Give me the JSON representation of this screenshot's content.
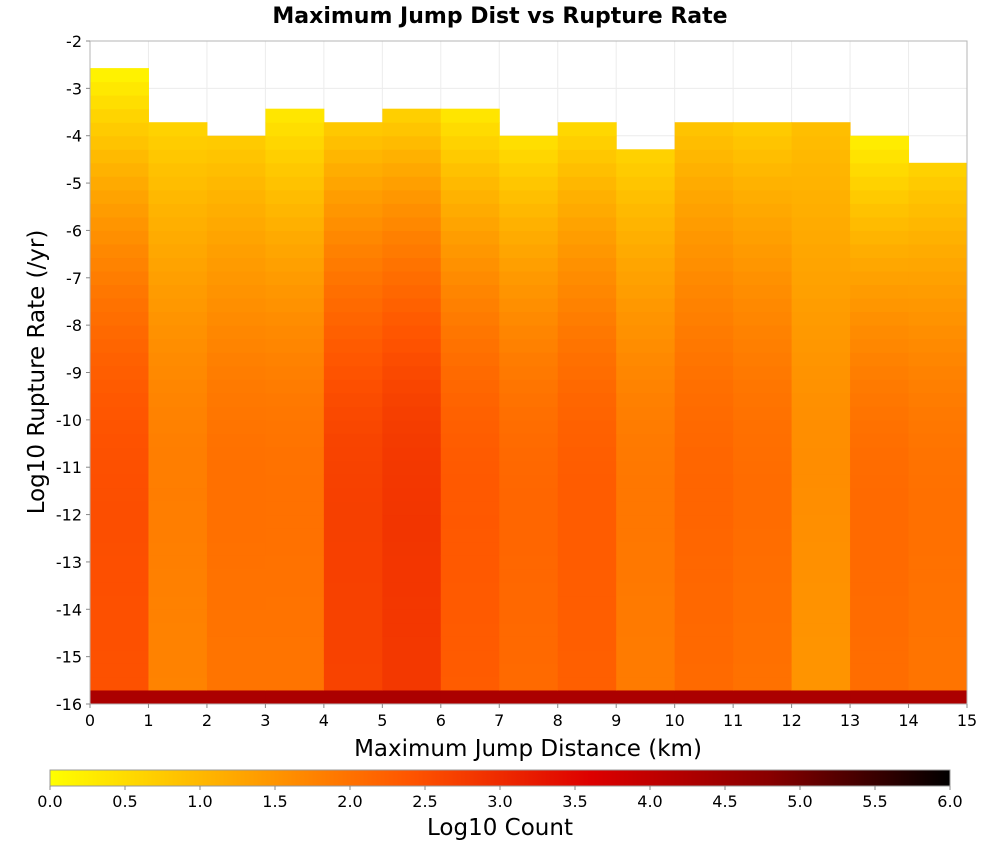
{
  "chart_data": {
    "type": "heatmap",
    "title": "Maximum Jump Dist vs Rupture Rate",
    "xlabel": "Maximum Jump Distance (km)",
    "ylabel": "Log10 Rupture Rate (/yr)",
    "colorbar_label": "Log10 Count",
    "xlim": [
      0,
      15
    ],
    "ylim": [
      -16,
      -2
    ],
    "x_ticks": [
      "0",
      "1",
      "2",
      "3",
      "4",
      "5",
      "6",
      "7",
      "8",
      "9",
      "10",
      "11",
      "12",
      "13",
      "14",
      "15"
    ],
    "y_ticks": [
      "-2",
      "-3",
      "-4",
      "-5",
      "-6",
      "-7",
      "-8",
      "-9",
      "-10",
      "-11",
      "-12",
      "-13",
      "-14",
      "-15",
      "-16"
    ],
    "colorbar_range": [
      0,
      6
    ],
    "colorbar_ticks": [
      "0.0",
      "0.5",
      "1.0",
      "1.5",
      "2.0",
      "2.5",
      "3.0",
      "3.5",
      "4.0",
      "4.5",
      "5.0",
      "5.5",
      "6.0"
    ],
    "colormap": [
      "#ffff00",
      "#ffaa00",
      "#ff5500",
      "#dd0000",
      "#880000",
      "#000000"
    ],
    "x_bin_width_km": 1,
    "y_bin_width_log": 0.2857,
    "columns": [
      {
        "x_start": 0,
        "y_top": -2.57,
        "base_value": 2.45,
        "top_value": 0.1
      },
      {
        "x_start": 1,
        "y_top": -3.71,
        "base_value": 1.75,
        "top_value": 0.6
      },
      {
        "x_start": 2,
        "y_top": -4.0,
        "base_value": 1.95,
        "top_value": 0.7
      },
      {
        "x_start": 3,
        "y_top": -3.43,
        "base_value": 1.95,
        "top_value": 0.3
      },
      {
        "x_start": 4,
        "y_top": -3.71,
        "base_value": 2.65,
        "top_value": 0.7
      },
      {
        "x_start": 5,
        "y_top": -3.43,
        "base_value": 2.8,
        "top_value": 0.6
      },
      {
        "x_start": 6,
        "y_top": -3.43,
        "base_value": 2.3,
        "top_value": 0.3
      },
      {
        "x_start": 7,
        "y_top": -4.0,
        "base_value": 2.1,
        "top_value": 0.4
      },
      {
        "x_start": 8,
        "y_top": -3.71,
        "base_value": 2.25,
        "top_value": 0.5
      },
      {
        "x_start": 9,
        "y_top": -4.29,
        "base_value": 1.85,
        "top_value": 0.6
      },
      {
        "x_start": 10,
        "y_top": -3.71,
        "base_value": 2.1,
        "top_value": 0.8
      },
      {
        "x_start": 11,
        "y_top": -3.71,
        "base_value": 2.0,
        "top_value": 0.7
      },
      {
        "x_start": 12,
        "y_top": -3.71,
        "base_value": 1.5,
        "top_value": 0.9
      },
      {
        "x_start": 13,
        "y_top": -4.0,
        "base_value": 2.05,
        "top_value": 0.2
      },
      {
        "x_start": 14,
        "y_top": -4.57,
        "base_value": 1.95,
        "top_value": 0.6
      }
    ],
    "bottom_row_value": 4.3
  }
}
